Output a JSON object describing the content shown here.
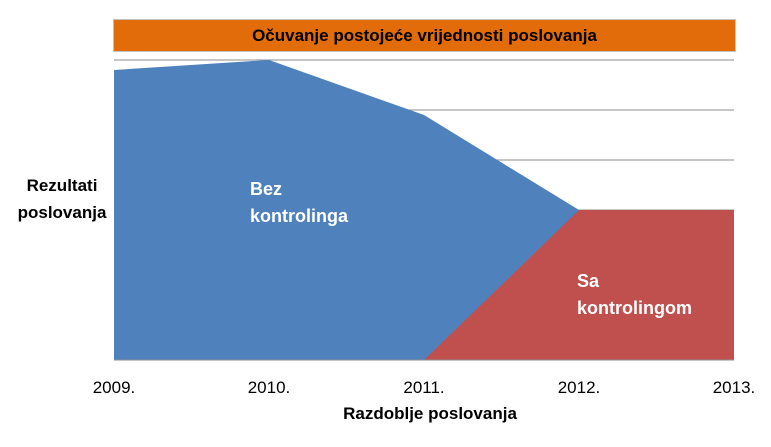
{
  "chart_data": {
    "type": "area",
    "title": "Očuvanje postojeće vrijednosti poslovanja",
    "xlabel": "Razdoblje poslovanja",
    "ylabel": "Rezultati poslovanja",
    "x": [
      "2009.",
      "2010.",
      "2011.",
      "2012.",
      "2013."
    ],
    "ylim": [
      0,
      6
    ],
    "grid": true,
    "colors": {
      "bez": "#4f81bd",
      "sa": "#c0504d",
      "title_bg": "#e36c0a"
    },
    "series": [
      {
        "name": "Bez kontrolinga",
        "values": [
          5.8,
          6.0,
          4.9,
          3.0,
          null
        ]
      },
      {
        "name": "Sa kontrolingom",
        "values": [
          null,
          null,
          0,
          3.0,
          3.0
        ]
      }
    ],
    "area_labels": {
      "bez": "Bez kontrolinga",
      "sa": "Sa kontrolingom"
    }
  }
}
